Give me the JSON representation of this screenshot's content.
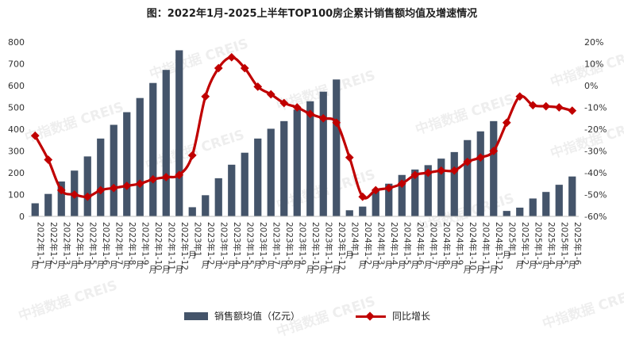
{
  "watermark_text": "中指数据 CREIS",
  "chart_data": {
    "type": "bar+line",
    "title": "图：2022年1月-2025上半年TOP100房企累计销售额均值及增速情况",
    "y_left": {
      "min": 0,
      "max": 800,
      "ticks": [
        "0",
        "100",
        "200",
        "300",
        "400",
        "500",
        "600",
        "700",
        "800"
      ]
    },
    "y_right": {
      "min": -60,
      "max": 20,
      "ticks": [
        "-60%",
        "-50%",
        "-40%",
        "-30%",
        "-20%",
        "-10%",
        "0%",
        "10%",
        "20%"
      ]
    },
    "categories": [
      "2022年1-1月",
      "2022年1-2月",
      "2022年1-3月",
      "2022年1-4月",
      "2022年1-5月",
      "2022年1-6月",
      "2022年1-7月",
      "2022年1-8月",
      "2022年1-9月",
      "2022年1-10月",
      "2022年1-11月",
      "2022年1-12月",
      "2023年1月",
      "2023年1-2月",
      "2023年1-3月",
      "2023年1-4月",
      "2023年1-5月",
      "2023年1-6月",
      "2023年1-7月",
      "2023年1-8月",
      "2023年1-9月",
      "2023年1-10月",
      "2023年1-11月",
      "2023年1-12月",
      "2024年1月",
      "2024年1-2月",
      "2024年1-3月",
      "2024年1-4月",
      "2024年1-5月",
      "2024年1-6月",
      "2024年1-7月",
      "2024年1-8月",
      "2024年1-9月",
      "2024年1-10月",
      "2024年1-11月",
      "2024年1-12月",
      "2025年1月",
      "2025年1-2月",
      "2025年1-3月",
      "2025年1-4月",
      "2025年1-5月",
      "2025年1-6月"
    ],
    "series": [
      {
        "name": "销售额均值（亿元）",
        "type": "bar",
        "axis": "left",
        "color": "#44546a",
        "values": [
          60,
          103,
          160,
          210,
          275,
          357,
          420,
          478,
          543,
          612,
          672,
          762,
          42,
          97,
          175,
          237,
          292,
          357,
          402,
          437,
          490,
          528,
          572,
          628,
          28,
          45,
          120,
          150,
          190,
          215,
          235,
          265,
          295,
          350,
          390,
          437,
          25,
          40,
          82,
          112,
          145,
          183
        ]
      },
      {
        "name": "同比增长",
        "type": "line",
        "axis": "right",
        "color": "#c00000",
        "values": [
          -23,
          -34,
          -48,
          -50,
          -51,
          -48,
          -47,
          -46,
          -45,
          -43,
          -42,
          -41,
          -32,
          -5,
          8,
          13,
          8,
          -0.5,
          -4,
          -8,
          -10,
          -13,
          -15,
          -17,
          -33,
          -51,
          -48,
          -47,
          -45,
          -41,
          -40,
          -39,
          -39,
          -35,
          -33,
          -30,
          -17,
          -5,
          -9,
          -9.5,
          -10,
          -11.5
        ]
      }
    ],
    "legend": [
      {
        "name": "销售额均值（亿元）",
        "marker": "bar"
      },
      {
        "name": "同比增长",
        "marker": "line-diamond"
      }
    ],
    "legend_position": "bottom-center",
    "grid": false
  }
}
